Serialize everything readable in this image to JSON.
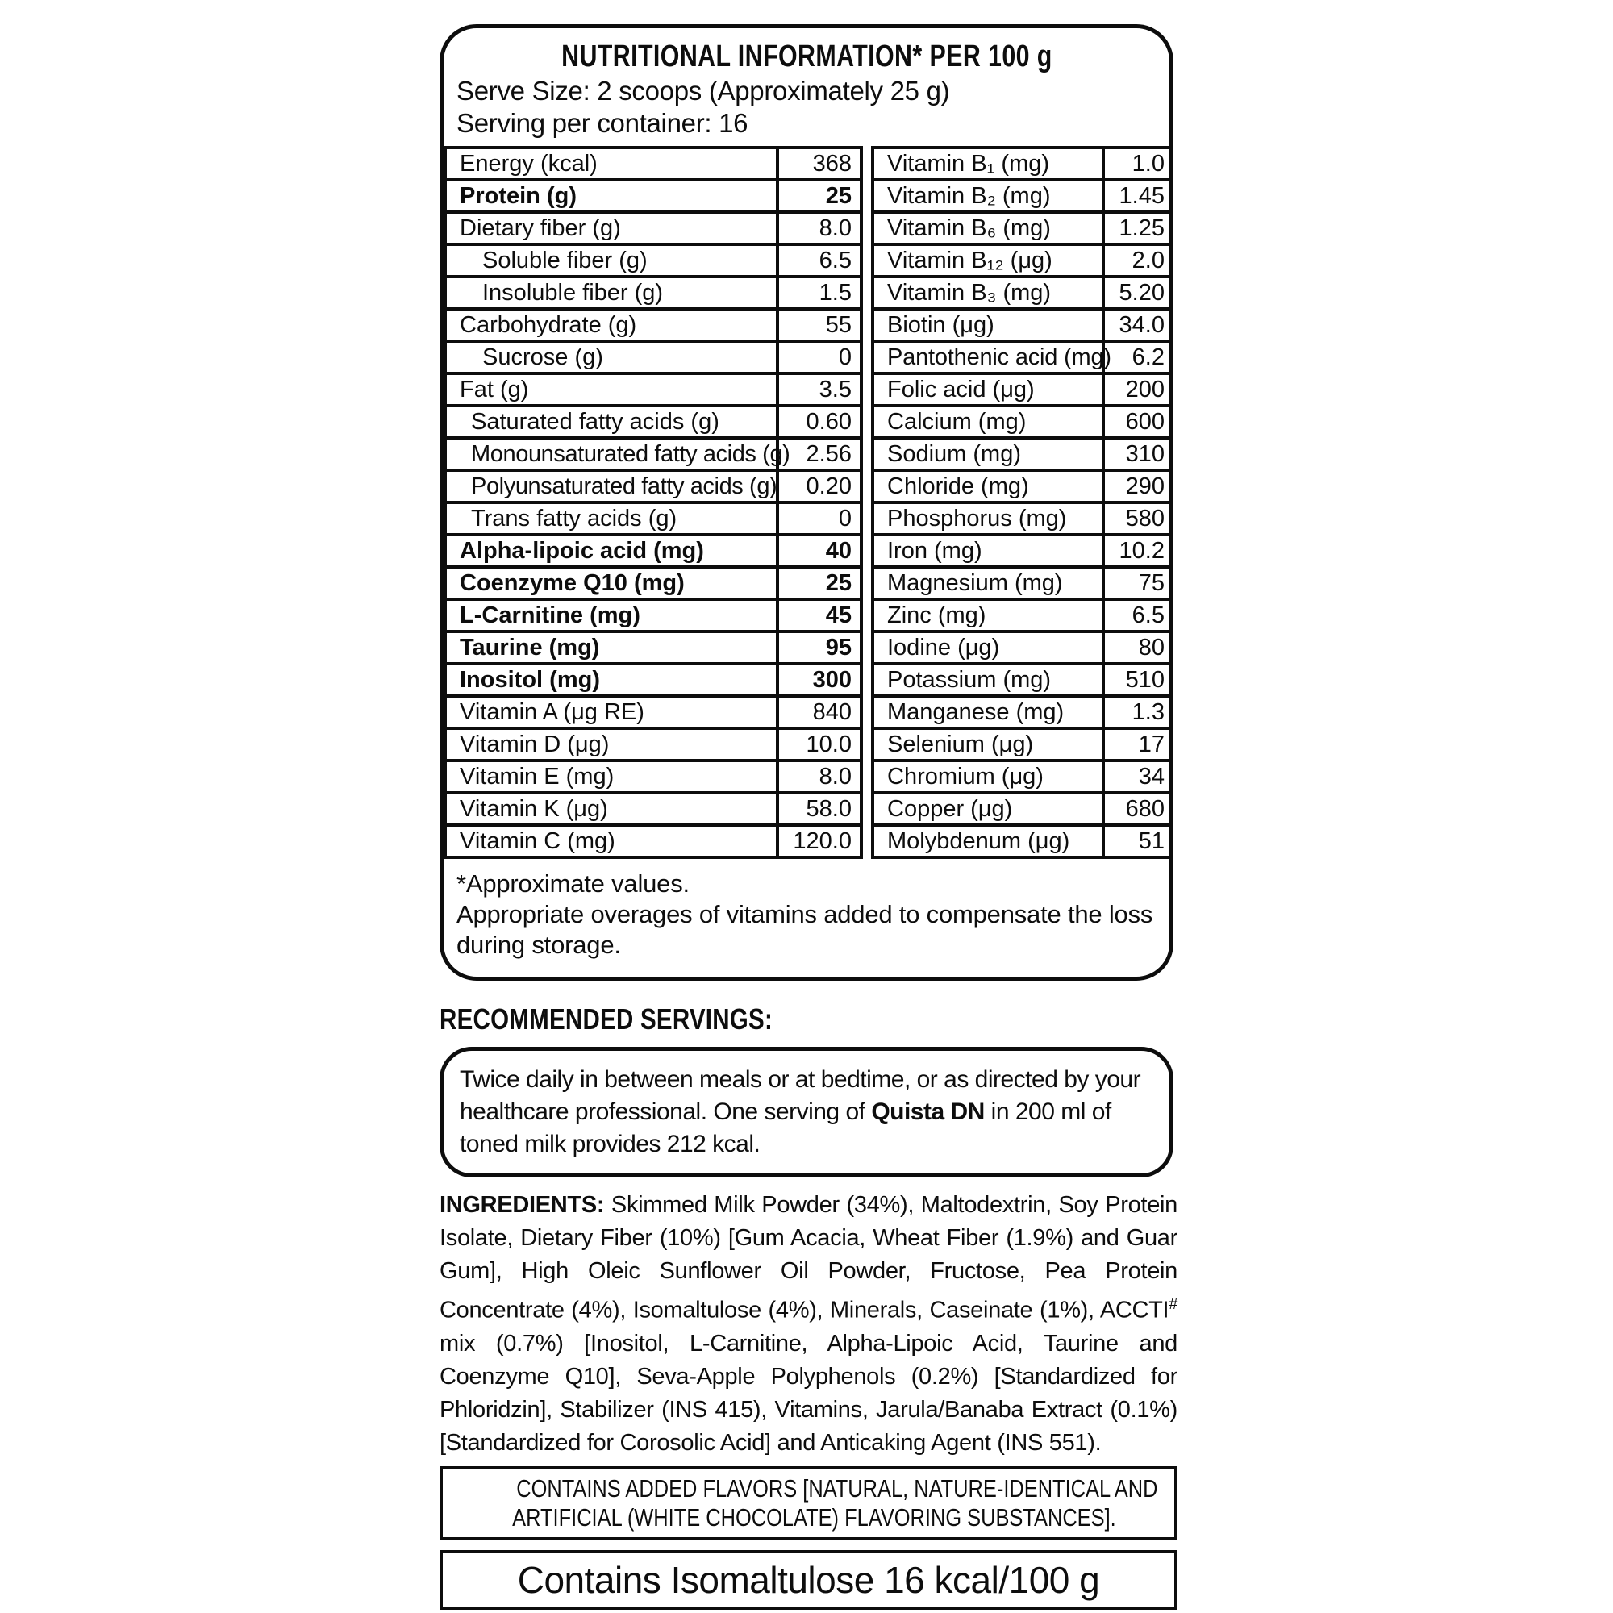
{
  "panel": {
    "title": "NUTRITIONAL INFORMATION* PER 100 g",
    "serve_size": "Serve Size: 2 scoops (Approximately 25 g)",
    "servings_per_container": "Serving per container: 16",
    "rows": [
      {
        "left_label": "Energy (kcal)",
        "left_value": "368",
        "bold": false,
        "indent": 0,
        "right_label": "Vitamin B₁ (mg)",
        "right_value": "1.0"
      },
      {
        "left_label": "Protein (g)",
        "left_value": "25",
        "bold": true,
        "indent": 0,
        "right_label": "Vitamin B₂ (mg)",
        "right_value": "1.45"
      },
      {
        "left_label": "Dietary fiber (g)",
        "left_value": "8.0",
        "bold": false,
        "indent": 0,
        "right_label": "Vitamin B₆ (mg)",
        "right_value": "1.25"
      },
      {
        "left_label": "Soluble fiber (g)",
        "left_value": "6.5",
        "bold": false,
        "indent": 2,
        "right_label": "Vitamin B₁₂ (μg)",
        "right_value": "2.0"
      },
      {
        "left_label": "Insoluble fiber (g)",
        "left_value": "1.5",
        "bold": false,
        "indent": 2,
        "right_label": "Vitamin B₃ (mg)",
        "right_value": "5.20"
      },
      {
        "left_label": "Carbohydrate (g)",
        "left_value": "55",
        "bold": false,
        "indent": 0,
        "right_label": "Biotin (μg)",
        "right_value": "34.0"
      },
      {
        "left_label": "Sucrose (g)",
        "left_value": "0",
        "bold": false,
        "indent": 2,
        "right_label": "Pantothenic acid (mg)",
        "right_value": "6.2"
      },
      {
        "left_label": "Fat (g)",
        "left_value": "3.5",
        "bold": false,
        "indent": 0,
        "right_label": "Folic acid (μg)",
        "right_value": "200"
      },
      {
        "left_label": "Saturated fatty acids (g)",
        "left_value": "0.60",
        "bold": false,
        "indent": 1,
        "right_label": "Calcium (mg)",
        "right_value": "600"
      },
      {
        "left_label": "Monounsaturated fatty acids (g)",
        "left_value": "2.56",
        "bold": false,
        "indent": 1,
        "right_label": "Sodium (mg)",
        "right_value": "310"
      },
      {
        "left_label": "Polyunsaturated fatty acids (g)",
        "left_value": "0.20",
        "bold": false,
        "indent": 1,
        "right_label": "Chloride (mg)",
        "right_value": "290"
      },
      {
        "left_label": "Trans fatty acids (g)",
        "left_value": "0",
        "bold": false,
        "indent": 1,
        "right_label": "Phosphorus (mg)",
        "right_value": "580"
      },
      {
        "left_label": "Alpha-lipoic acid (mg)",
        "left_value": "40",
        "bold": true,
        "indent": 0,
        "right_label": "Iron (mg)",
        "right_value": "10.2"
      },
      {
        "left_label": "Coenzyme Q10 (mg)",
        "left_value": "25",
        "bold": true,
        "indent": 0,
        "right_label": "Magnesium (mg)",
        "right_value": "75"
      },
      {
        "left_label": "L-Carnitine (mg)",
        "left_value": "45",
        "bold": true,
        "indent": 0,
        "right_label": "Zinc (mg)",
        "right_value": "6.5"
      },
      {
        "left_label": "Taurine (mg)",
        "left_value": "95",
        "bold": true,
        "indent": 0,
        "right_label": "Iodine (μg)",
        "right_value": "80"
      },
      {
        "left_label": "Inositol (mg)",
        "left_value": "300",
        "bold": true,
        "indent": 0,
        "right_label": "Potassium (mg)",
        "right_value": "510"
      },
      {
        "left_label": "Vitamin A (μg RE)",
        "left_value": "840",
        "bold": false,
        "indent": 0,
        "right_label": "Manganese (mg)",
        "right_value": "1.3"
      },
      {
        "left_label": "Vitamin D (μg)",
        "left_value": "10.0",
        "bold": false,
        "indent": 0,
        "right_label": "Selenium (μg)",
        "right_value": "17"
      },
      {
        "left_label": "Vitamin E (mg)",
        "left_value": "8.0",
        "bold": false,
        "indent": 0,
        "right_label": "Chromium (μg)",
        "right_value": "34"
      },
      {
        "left_label": "Vitamin K (μg)",
        "left_value": "58.0",
        "bold": false,
        "indent": 0,
        "right_label": "Copper (μg)",
        "right_value": "680"
      },
      {
        "left_label": "Vitamin C (mg)",
        "left_value": "120.0",
        "bold": false,
        "indent": 0,
        "right_label": "Molybdenum (μg)",
        "right_value": "51"
      }
    ],
    "footnote_line1": "*Approximate values.",
    "footnote_line2": "Appropriate overages of vitamins added to compensate the loss during storage."
  },
  "recommended": {
    "heading": "RECOMMENDED SERVINGS:",
    "text_segments": [
      {
        "text": "Twice daily in between meals or at bedtime, or as directed by your healthcare professional. One serving of ",
        "bold": false
      },
      {
        "text": "Quista DN",
        "bold": true
      },
      {
        "text": " in 200 ml of toned milk provides 212 kcal.",
        "bold": false
      }
    ]
  },
  "ingredients": {
    "segments": [
      {
        "text": "INGREDIENTS:",
        "bold": true
      },
      {
        "text": " Skimmed Milk Powder (34%), Maltodextrin, Soy Protein Isolate, Dietary Fiber (10%) [Gum Acacia, Wheat Fiber (1.9%) and Guar Gum], High Oleic Sunflower Oil Powder, Fructose, Pea Protein Concentrate (4%), Isomaltulose (4%), Minerals, Caseinate (1%), ACCTI",
        "bold": false
      },
      {
        "text": "#",
        "bold": false,
        "sup": true
      },
      {
        "text": " mix (0.7%) [Inositol, L-Carnitine, Alpha-Lipoic Acid, Taurine and Coenzyme Q10], Seva-Apple Polyphenols (0.2%) [Standardized for Phloridzin], Stabilizer (INS 415), Vitamins, Jarula/Banaba Extract (0.1%) [Standardized for Corosolic Acid] and Anticaking Agent (INS 551).",
        "bold": false
      }
    ]
  },
  "flavors": {
    "line1": "CONTAINS ADDED FLAVORS [NATURAL, NATURE-IDENTICAL AND",
    "line2": "ARTIFICIAL (WHITE CHOCOLATE) FLAVORING SUBSTANCES]."
  },
  "isomaltulose": {
    "text": "Contains Isomaltulose 16 kcal/100 g"
  },
  "colors": {
    "ink": "#0d0d0d",
    "background": "#ffffff"
  }
}
